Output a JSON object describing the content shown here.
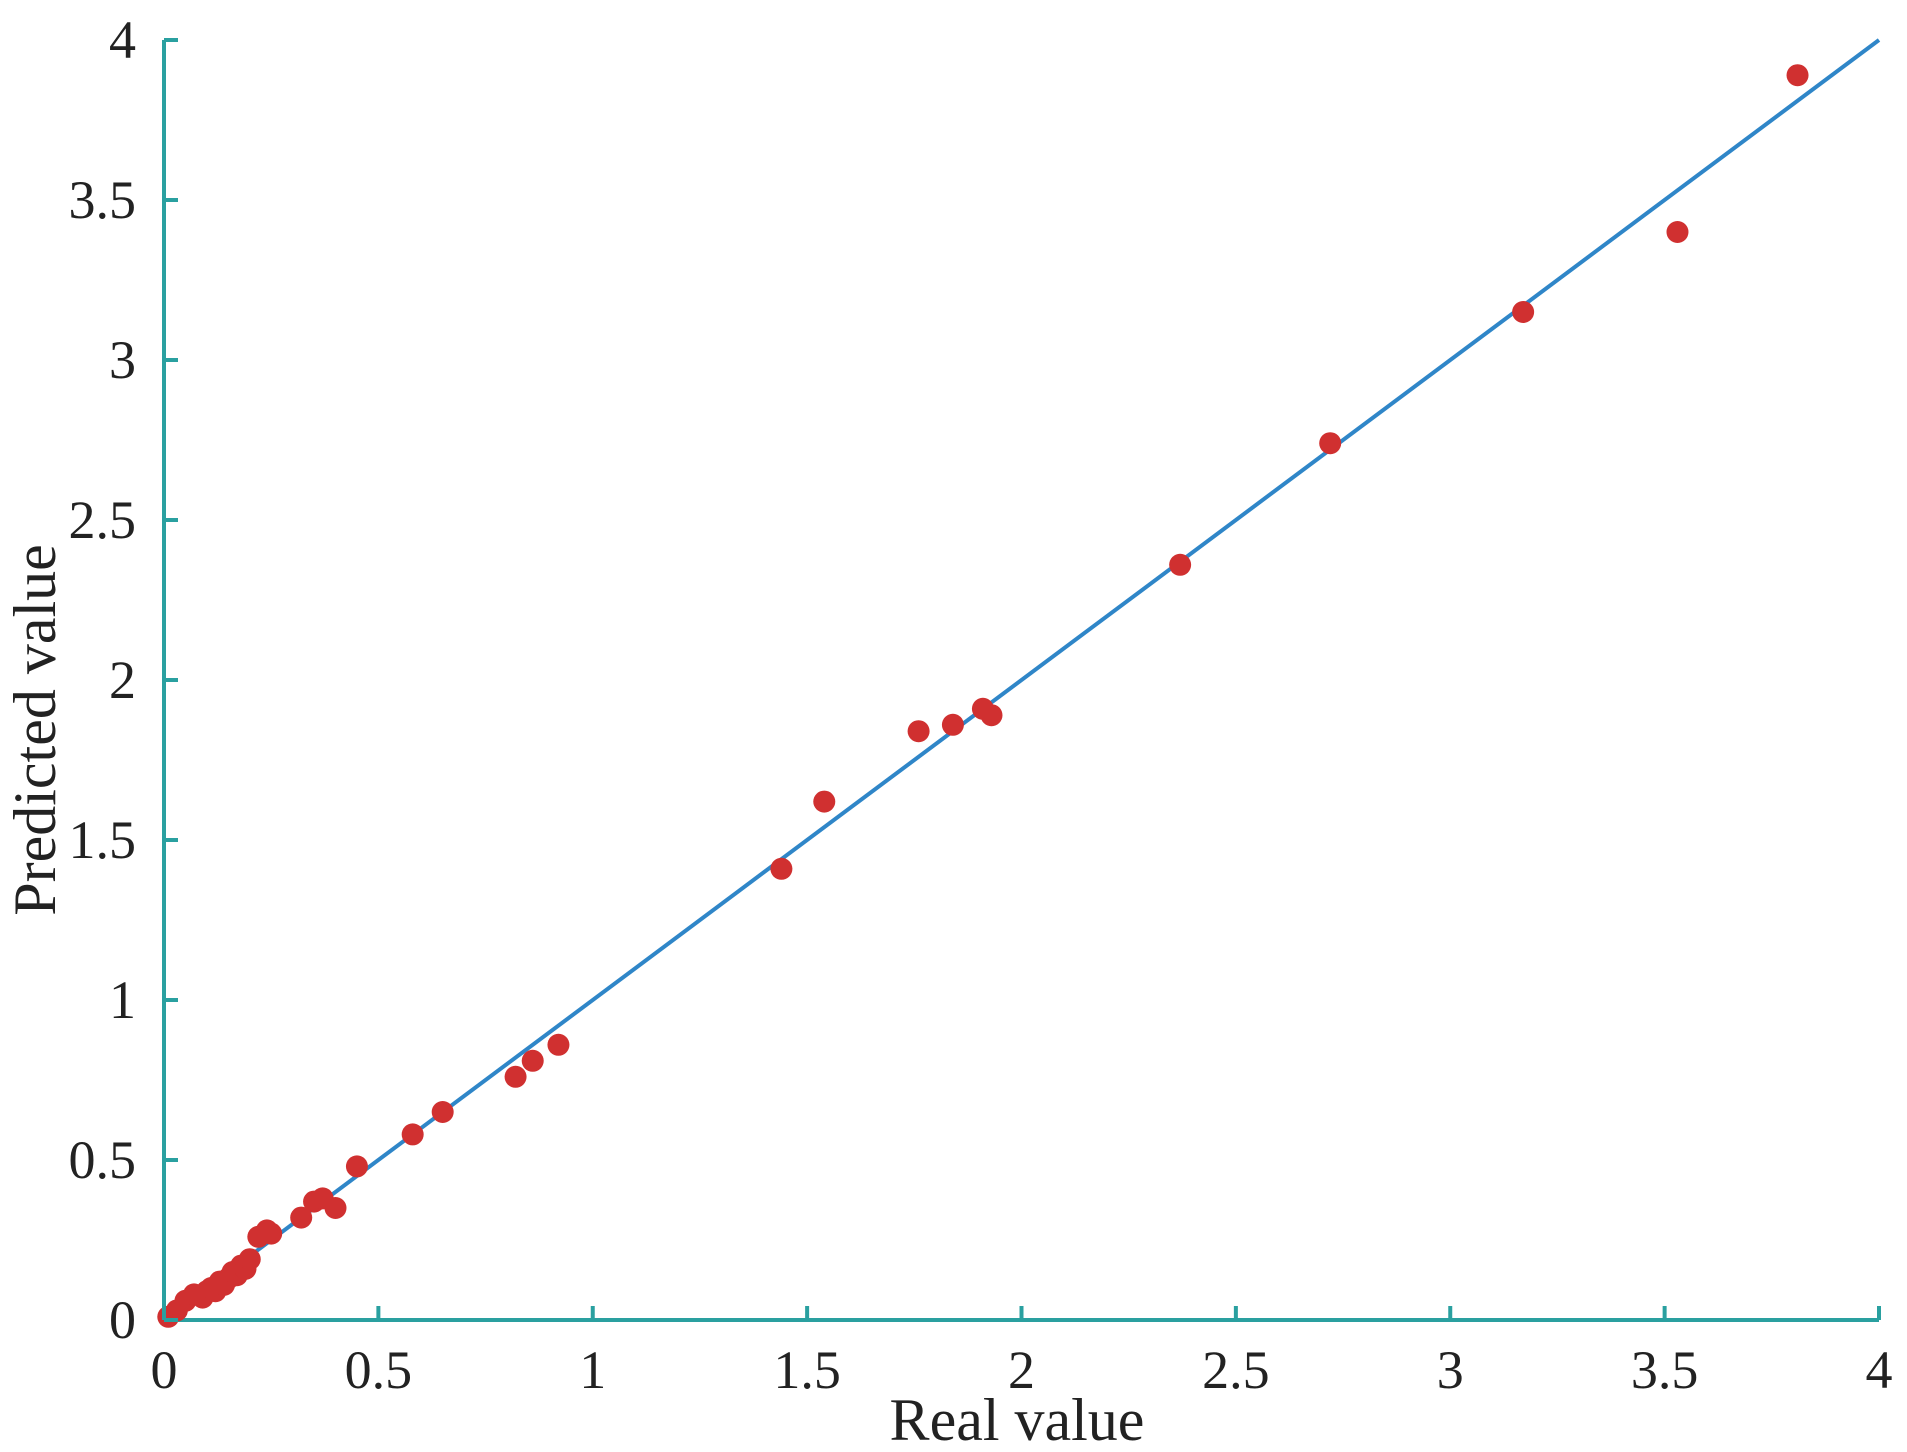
{
  "chart_data": {
    "type": "scatter",
    "title": "",
    "xlabel": "Real value",
    "ylabel": "Predicted value",
    "xlim": [
      0,
      4
    ],
    "ylim": [
      0,
      4
    ],
    "x_ticks": [
      0,
      0.5,
      1,
      1.5,
      2,
      2.5,
      3,
      3.5,
      4
    ],
    "y_ticks": [
      0,
      0.5,
      1,
      1.5,
      2,
      2.5,
      3,
      3.5,
      4
    ],
    "x_tick_labels": [
      "0",
      "0.5",
      "1",
      "1.5",
      "2",
      "2.5",
      "3",
      "3.5",
      "4"
    ],
    "y_tick_labels": [
      "0",
      "0.5",
      "1",
      "1.5",
      "2",
      "2.5",
      "3",
      "3.5",
      "4"
    ],
    "grid": false,
    "legend": "none",
    "colors": {
      "points": "#d03030",
      "fit_line": "#2f86c8",
      "axes": "#2aa0a0",
      "text": "#222222"
    },
    "fit_line": {
      "x": [
        0,
        4
      ],
      "y": [
        0,
        4
      ]
    },
    "series": [
      {
        "x": [
          0.01,
          0.03,
          0.05,
          0.07,
          0.09,
          0.1,
          0.11,
          0.12,
          0.13,
          0.14,
          0.15,
          0.16,
          0.17,
          0.18,
          0.19,
          0.2,
          0.22,
          0.24,
          0.25,
          0.32,
          0.35,
          0.37,
          0.4,
          0.45,
          0.58,
          0.65,
          0.82,
          0.86,
          0.92,
          1.44,
          1.54,
          1.76,
          1.84,
          1.91,
          1.93,
          2.37,
          2.72,
          3.17,
          3.53,
          3.81
        ],
        "y": [
          0.01,
          0.03,
          0.06,
          0.08,
          0.07,
          0.09,
          0.1,
          0.09,
          0.12,
          0.11,
          0.13,
          0.15,
          0.14,
          0.17,
          0.16,
          0.19,
          0.26,
          0.28,
          0.27,
          0.32,
          0.37,
          0.38,
          0.35,
          0.48,
          0.58,
          0.65,
          0.76,
          0.81,
          0.86,
          1.41,
          1.62,
          1.84,
          1.86,
          1.91,
          1.89,
          2.36,
          2.74,
          3.15,
          3.4,
          3.89
        ]
      }
    ]
  }
}
